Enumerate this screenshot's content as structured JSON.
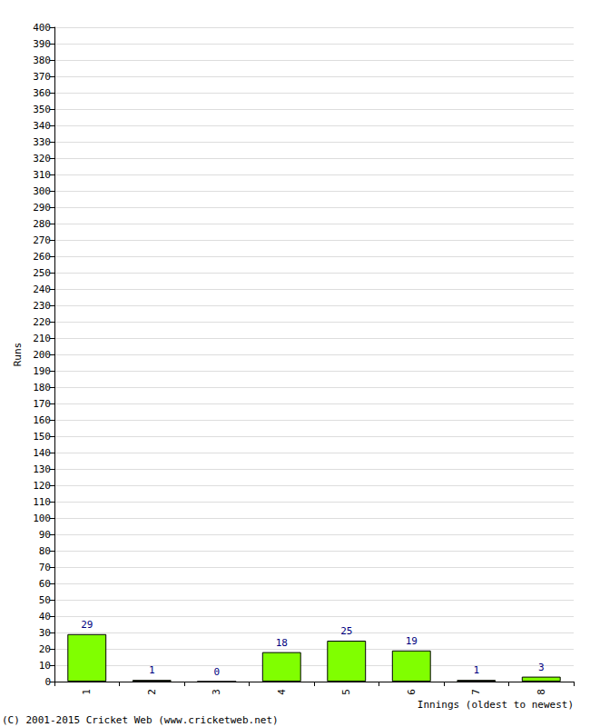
{
  "chart_data": {
    "type": "bar",
    "categories": [
      "1",
      "2",
      "3",
      "4",
      "5",
      "6",
      "7",
      "8"
    ],
    "values": [
      29,
      1,
      0,
      18,
      25,
      19,
      1,
      3
    ],
    "color": "#80ff00",
    "x_label": "Innings (oldest to newest)",
    "y_label": "Runs",
    "annotations": [
      "(C) 2001-2015 Cricket Web (www.cricketweb.net)"
    ],
    "ylim": [
      0,
      400
    ],
    "yticks": [
      0,
      10,
      20,
      30,
      40,
      50,
      60,
      70,
      80,
      90,
      100,
      110,
      120,
      130,
      140,
      150,
      160,
      170,
      180,
      190,
      200,
      210,
      220,
      230,
      240,
      250,
      260,
      270,
      280,
      290,
      300,
      310,
      320,
      330,
      340,
      350,
      360,
      370,
      380,
      390,
      400
    ],
    "grid": true,
    "data_labels": true
  }
}
